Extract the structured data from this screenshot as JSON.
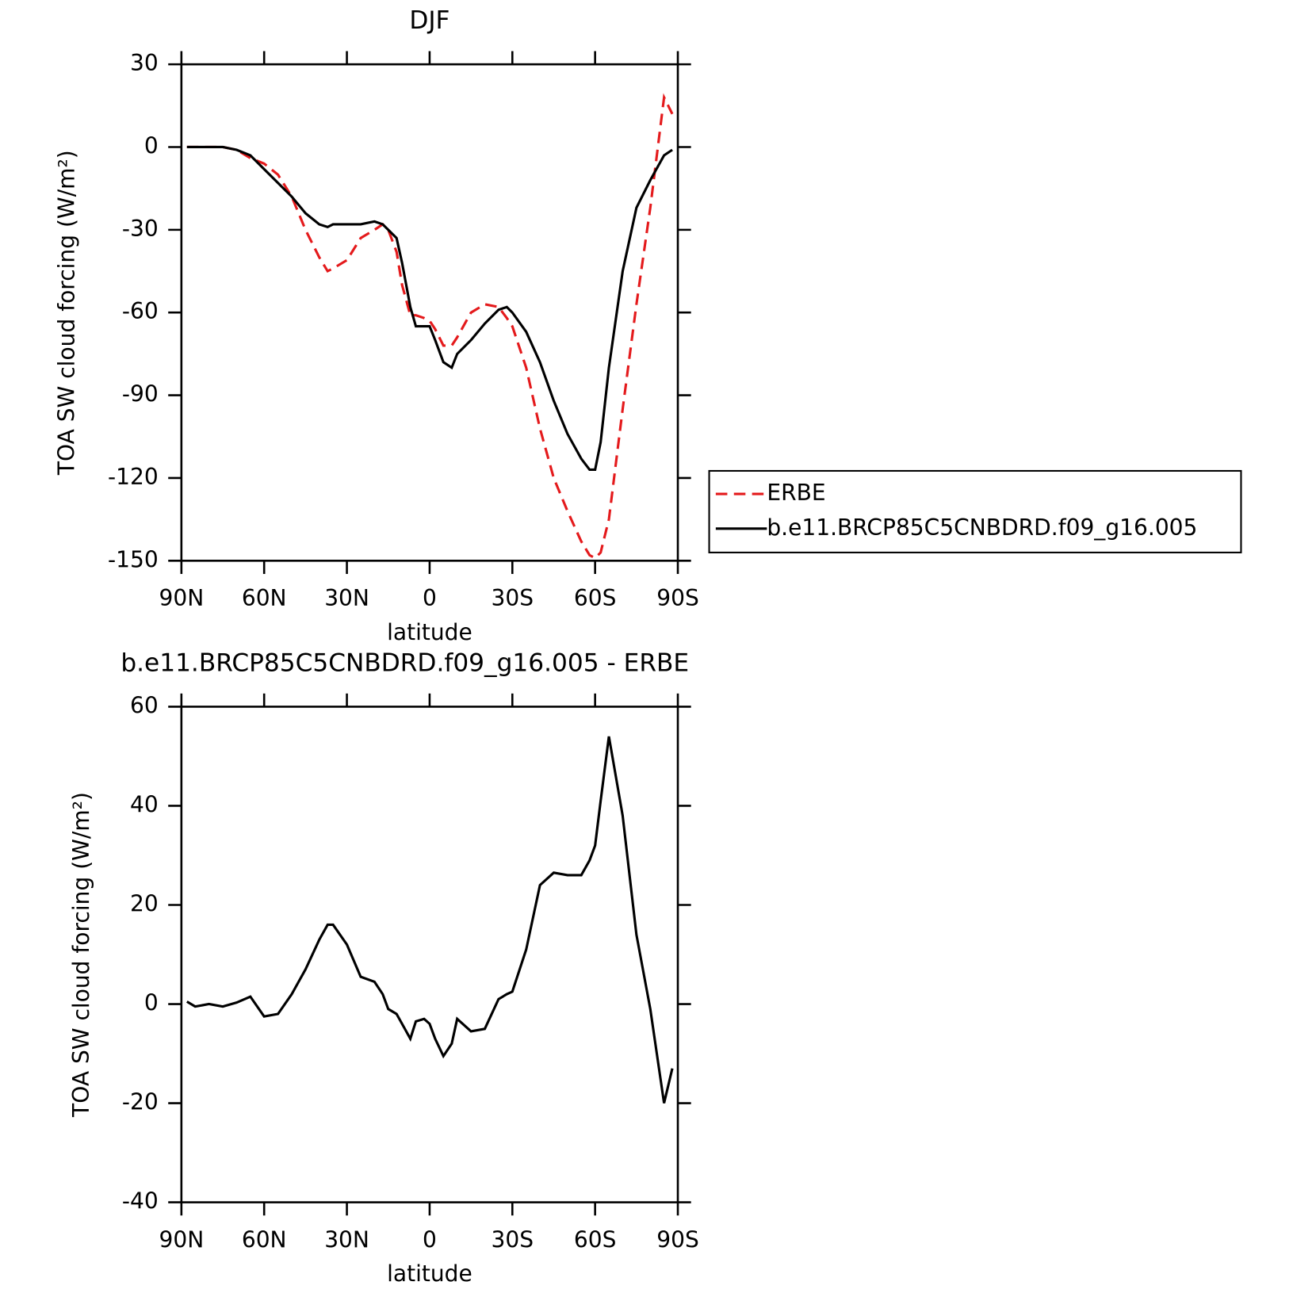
{
  "chart_data": [
    {
      "type": "line",
      "title": "DJF",
      "xlabel": "latitude",
      "ylabel": "TOA SW cloud forcing (W/m²)",
      "x": [
        88,
        85,
        80,
        75,
        70,
        65,
        60,
        55,
        50,
        45,
        40,
        37,
        35,
        30,
        25,
        20,
        17,
        15,
        12,
        10,
        7,
        5,
        2,
        0,
        -2,
        -5,
        -8,
        -10,
        -15,
        -20,
        -25,
        -28,
        -30,
        -35,
        -40,
        -45,
        -50,
        -55,
        -58,
        -60,
        -62,
        -65,
        -70,
        -75,
        -80,
        -85,
        -88
      ],
      "series": [
        {
          "name": "ERBE",
          "color": "#e41a1c",
          "dash": true,
          "values": [
            0,
            0,
            0,
            0,
            -1,
            -4,
            -6,
            -10,
            -18,
            -30,
            -40,
            -45,
            -44,
            -41,
            -33,
            -30,
            -28,
            -30,
            -38,
            -50,
            -61,
            -61,
            -62,
            -63,
            -66,
            -72,
            -72,
            -69,
            -60,
            -57,
            -58,
            -62,
            -65,
            -80,
            -102,
            -120,
            -132,
            -143,
            -148,
            -149,
            -147,
            -135,
            -95,
            -57,
            -22,
            18,
            12
          ]
        },
        {
          "name": "b.e11.BRCP85C5CNBDRD.f09_g16.005",
          "color": "#000000",
          "dash": false,
          "values": [
            0,
            0,
            0,
            0,
            -1,
            -3,
            -8,
            -13,
            -18,
            -24,
            -28,
            -29,
            -28,
            -28,
            -28,
            -27,
            -28,
            -30,
            -33,
            -42,
            -58,
            -65,
            -65,
            -65,
            -70,
            -78,
            -80,
            -75,
            -70,
            -64,
            -59,
            -58,
            -60,
            -67,
            -78,
            -92,
            -104,
            -113,
            -117,
            -117,
            -107,
            -80,
            -45,
            -22,
            -12,
            -3,
            -1
          ]
        }
      ],
      "xlim": [
        90,
        -90
      ],
      "xticks": [
        {
          "value": 90,
          "label": "90N"
        },
        {
          "value": 60,
          "label": "60N"
        },
        {
          "value": 30,
          "label": "30N"
        },
        0,
        {
          "value": -30,
          "label": "30S"
        },
        {
          "value": -60,
          "label": "60S"
        },
        {
          "value": -90,
          "label": "90S"
        }
      ],
      "ylim": [
        -150,
        30
      ],
      "yticks": [
        30,
        0,
        -30,
        -60,
        -90,
        -120,
        -150
      ],
      "legend": "right"
    },
    {
      "type": "line",
      "title": "b.e11.BRCP85C5CNBDRD.f09_g16.005 - ERBE",
      "xlabel": "latitude",
      "ylabel": "TOA SW cloud forcing (W/m²)",
      "x": [
        88,
        85,
        80,
        75,
        70,
        65,
        60,
        55,
        50,
        45,
        40,
        37,
        35,
        30,
        25,
        20,
        17,
        15,
        12,
        10,
        7,
        5,
        2,
        0,
        -2,
        -5,
        -8,
        -10,
        -15,
        -20,
        -25,
        -28,
        -30,
        -35,
        -40,
        -45,
        -50,
        -55,
        -58,
        -60,
        -62,
        -65,
        -70,
        -75,
        -80,
        -85,
        -88
      ],
      "series": [
        {
          "color": "#000000",
          "dash": false,
          "values": [
            0.5,
            -0.5,
            0,
            -0.5,
            0.3,
            1.5,
            -2.5,
            -2,
            2,
            7,
            13,
            16,
            16,
            12,
            5.5,
            4.5,
            2,
            -1,
            -2,
            -4,
            -7,
            -3.5,
            -3,
            -4,
            -7,
            -10.5,
            -8,
            -3,
            -5.5,
            -5,
            1,
            2,
            2.5,
            11,
            24,
            26.5,
            26,
            26,
            29,
            32,
            41,
            54,
            38,
            14,
            -1,
            -20,
            -13
          ]
        }
      ],
      "xlim": [
        90,
        -90
      ],
      "xticks": [
        {
          "value": 90,
          "label": "90N"
        },
        {
          "value": 60,
          "label": "60N"
        },
        {
          "value": 30,
          "label": "30N"
        },
        0,
        {
          "value": -30,
          "label": "30S"
        },
        {
          "value": -60,
          "label": "60S"
        },
        {
          "value": -90,
          "label": "90S"
        }
      ],
      "ylim": [
        -40,
        60
      ],
      "yticks": [
        60,
        40,
        20,
        0,
        -20,
        -40
      ]
    }
  ]
}
